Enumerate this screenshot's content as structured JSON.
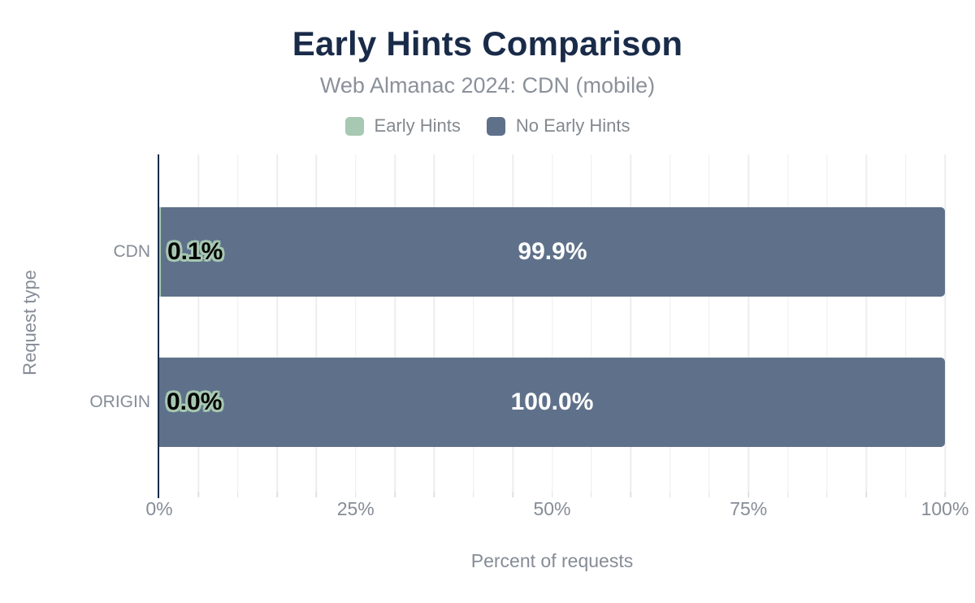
{
  "chart_data": {
    "type": "bar",
    "orientation": "horizontal",
    "stacked": true,
    "title": "Early Hints Comparison",
    "subtitle": "Web Almanac 2024: CDN (mobile)",
    "categories": [
      "CDN",
      "ORIGIN"
    ],
    "series": [
      {
        "name": "Early Hints",
        "color": "#a7c8b2",
        "values": [
          0.1,
          0.0
        ],
        "labels": [
          "0.1%",
          "0.0%"
        ]
      },
      {
        "name": "No Early Hints",
        "color": "#5f718a",
        "values": [
          99.9,
          100.0
        ],
        "labels": [
          "99.9%",
          "100.0%"
        ]
      }
    ],
    "xlabel": "Percent of requests",
    "ylabel": "Request type",
    "xlim": [
      0,
      100
    ],
    "x_ticks": [
      "0%",
      "25%",
      "50%",
      "75%",
      "100%"
    ],
    "grid": "vertical minor gridlines every 5%",
    "legend_position": "top"
  },
  "colors": {
    "title_text": "#1a2b49",
    "subtitle_text": "#8b919b",
    "muted_text": "#868c96",
    "axis_line": "#1a2b49",
    "gridline": "#ededed",
    "early_hints_green": "#a7c8b2",
    "no_early_hints_slate": "#5f718a",
    "value_label_dark": "#030303",
    "value_label_light": "#ffffff",
    "value_label_outline": "#a7c8b2",
    "background": "#ffffff"
  }
}
